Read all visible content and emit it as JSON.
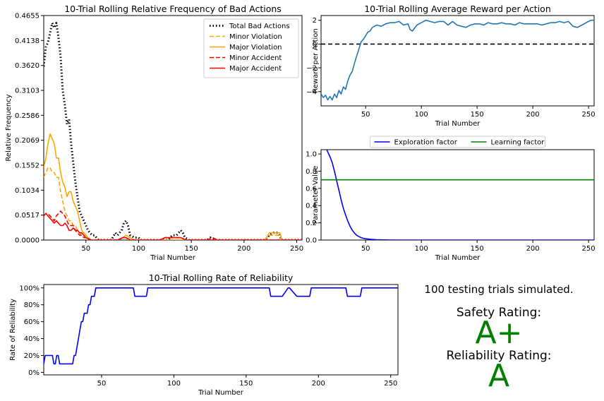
{
  "chart_data": [
    {
      "id": "bad_actions",
      "type": "line",
      "title": "10-Trial Rolling Relative Frequency of Bad Actions",
      "xlabel": "Trial Number",
      "ylabel": "Relative Frequency",
      "xlim": [
        10,
        255
      ],
      "ylim": [
        0,
        0.4655
      ],
      "xticks": [
        50,
        100,
        150,
        200,
        250
      ],
      "yticks": [
        0.0,
        0.0517,
        0.1034,
        0.1552,
        0.2069,
        0.2586,
        0.3103,
        0.362,
        0.4138,
        0.4655
      ],
      "ytick_labels": [
        "0.0000",
        "0.0517",
        "0.1034",
        "0.1552",
        "0.2069",
        "0.2586",
        "0.3103",
        "0.3620",
        "0.4138",
        "0.4655"
      ],
      "legend_loc": "upper right",
      "series": [
        {
          "name": "Total Bad Actions",
          "color": "#000000",
          "dash": "dotted",
          "x": [
            10,
            12,
            14,
            16,
            18,
            20,
            22,
            24,
            26,
            28,
            30,
            32,
            34,
            36,
            38,
            40,
            42,
            44,
            46,
            48,
            50,
            52,
            54,
            56,
            58,
            60,
            62,
            66,
            70,
            74,
            78,
            80,
            84,
            86,
            88,
            90,
            92,
            96,
            100,
            102,
            104,
            108,
            112,
            120,
            124,
            128,
            132,
            136,
            140,
            142,
            144,
            148,
            160,
            165,
            168,
            172,
            180,
            200,
            220,
            224,
            228,
            232,
            236,
            240,
            250,
            255
          ],
          "y": [
            0.36,
            0.4,
            0.41,
            0.43,
            0.45,
            0.44,
            0.45,
            0.42,
            0.38,
            0.31,
            0.28,
            0.24,
            0.25,
            0.2,
            0.16,
            0.12,
            0.09,
            0.06,
            0.05,
            0.04,
            0.03,
            0.02,
            0.015,
            0.01,
            0.01,
            0.005,
            0,
            0,
            0,
            0,
            0.015,
            0.01,
            0.02,
            0.035,
            0.04,
            0.03,
            0.01,
            0.005,
            0.005,
            0,
            0,
            0,
            0,
            0,
            0,
            0,
            0.01,
            0.01,
            0.02,
            0.015,
            0.005,
            0,
            0,
            0,
            0.005,
            0,
            0,
            0,
            0,
            0.01,
            0.015,
            0.015,
            0,
            0,
            0,
            0
          ]
        },
        {
          "name": "Minor Violation",
          "color": "#FFA500",
          "dash": "dashed",
          "x": [
            10,
            12,
            14,
            16,
            18,
            20,
            22,
            24,
            26,
            28,
            30,
            32,
            34,
            36,
            38,
            40,
            42,
            44,
            46,
            48,
            50,
            55,
            60,
            80,
            85,
            88,
            90,
            100,
            120,
            130,
            140,
            145,
            200,
            220,
            224,
            226,
            230,
            234,
            236,
            240,
            255
          ],
          "y": [
            0.13,
            0.14,
            0.15,
            0.15,
            0.14,
            0.14,
            0.13,
            0.13,
            0.1,
            0.08,
            0.06,
            0.05,
            0.04,
            0.04,
            0.03,
            0.03,
            0.02,
            0.015,
            0.01,
            0.01,
            0.005,
            0,
            0,
            0,
            0.005,
            0.005,
            0,
            0,
            0,
            0,
            0,
            0,
            0,
            0,
            0.01,
            0.01,
            0.01,
            0.01,
            0,
            0,
            0
          ]
        },
        {
          "name": "Major Violation",
          "color": "#FFA500",
          "dash": "solid",
          "x": [
            10,
            12,
            14,
            16,
            18,
            20,
            22,
            24,
            26,
            28,
            30,
            32,
            34,
            36,
            38,
            40,
            42,
            44,
            46,
            48,
            50,
            52,
            55,
            60,
            80,
            85,
            88,
            92,
            96,
            100,
            120,
            140,
            200,
            220,
            224,
            226,
            230,
            234,
            236,
            240,
            255
          ],
          "y": [
            0.15,
            0.17,
            0.2,
            0.22,
            0.21,
            0.2,
            0.17,
            0.17,
            0.14,
            0.12,
            0.11,
            0.09,
            0.1,
            0.1,
            0.08,
            0.07,
            0.06,
            0.04,
            0.02,
            0.015,
            0.01,
            0.005,
            0,
            0,
            0,
            0.005,
            0.01,
            0.005,
            0,
            0,
            0,
            0,
            0,
            0,
            0.015,
            0.015,
            0.015,
            0.015,
            0,
            0,
            0
          ]
        },
        {
          "name": "Minor Accident",
          "color": "#FF0000",
          "dash": "dashed",
          "x": [
            10,
            12,
            14,
            16,
            18,
            20,
            22,
            24,
            26,
            28,
            30,
            32,
            34,
            36,
            38,
            40,
            42,
            44,
            46,
            48,
            50,
            55,
            60,
            80,
            85,
            88,
            92,
            100,
            120,
            125,
            130,
            140,
            145,
            150,
            165,
            170,
            175,
            180,
            200,
            255
          ],
          "y": [
            0.05,
            0.055,
            0.055,
            0.05,
            0.045,
            0.04,
            0.05,
            0.055,
            0.06,
            0.055,
            0.05,
            0.04,
            0.03,
            0.03,
            0.03,
            0.02,
            0.015,
            0.01,
            0.01,
            0.005,
            0.005,
            0,
            0,
            0,
            0.005,
            0.005,
            0,
            0,
            0,
            0.005,
            0.005,
            0.005,
            0,
            0,
            0,
            0.005,
            0,
            0,
            0,
            0
          ]
        },
        {
          "name": "Major Accident",
          "color": "#FF0000",
          "dash": "solid",
          "x": [
            10,
            12,
            14,
            16,
            18,
            20,
            22,
            24,
            26,
            28,
            30,
            32,
            34,
            36,
            38,
            40,
            42,
            44,
            46,
            48,
            50,
            55,
            60,
            80,
            85,
            88,
            92,
            100,
            120,
            125,
            130,
            140,
            145,
            150,
            255
          ],
          "y": [
            0.05,
            0.055,
            0.05,
            0.045,
            0.04,
            0.035,
            0.04,
            0.035,
            0.03,
            0.03,
            0.035,
            0.03,
            0.02,
            0.02,
            0.025,
            0.02,
            0.02,
            0.015,
            0.015,
            0.01,
            0.005,
            0,
            0,
            0,
            0.005,
            0.005,
            0,
            0,
            0,
            0.005,
            0.005,
            0.005,
            0,
            0,
            0
          ]
        }
      ]
    },
    {
      "id": "reward",
      "type": "line",
      "title": "10-Trial Rolling Average Reward per Action",
      "xlabel": "Trial Number",
      "ylabel": "Reward per Action",
      "xlim": [
        10,
        255
      ],
      "ylim": [
        -5.2,
        2.4
      ],
      "xticks": [
        50,
        100,
        150,
        200,
        250
      ],
      "yticks": [
        -4,
        -2,
        0,
        2
      ],
      "ytick_labels": [
        "−4",
        "−2",
        "0",
        "2"
      ],
      "hline": {
        "y": 0,
        "color": "#000000",
        "dash": "dashed"
      },
      "series": [
        {
          "name": "",
          "color": "#1f77b4",
          "dash": "solid",
          "x": [
            10,
            12,
            14,
            16,
            18,
            20,
            22,
            24,
            26,
            28,
            30,
            32,
            34,
            36,
            38,
            40,
            42,
            44,
            46,
            48,
            50,
            52,
            54,
            56,
            58,
            60,
            64,
            68,
            72,
            76,
            80,
            84,
            88,
            90,
            92,
            96,
            100,
            104,
            108,
            112,
            116,
            120,
            124,
            128,
            132,
            136,
            140,
            144,
            148,
            152,
            156,
            160,
            164,
            168,
            172,
            176,
            180,
            184,
            188,
            192,
            196,
            200,
            204,
            208,
            212,
            216,
            220,
            224,
            228,
            232,
            236,
            240,
            244,
            248,
            252,
            255
          ],
          "y": [
            -4.2,
            -4.5,
            -4.3,
            -4.7,
            -4.4,
            -4.7,
            -4.2,
            -4.5,
            -3.9,
            -4.2,
            -3.6,
            -3.8,
            -3.1,
            -2.6,
            -2.3,
            -1.6,
            -1.0,
            -0.4,
            0.2,
            0.4,
            0.7,
            1.0,
            1.1,
            1.4,
            1.5,
            1.6,
            1.5,
            1.7,
            1.8,
            1.8,
            1.9,
            1.6,
            1.7,
            1.2,
            1.1,
            1.6,
            1.8,
            2.0,
            1.9,
            1.8,
            1.9,
            1.9,
            1.6,
            1.9,
            1.6,
            1.5,
            1.4,
            1.6,
            1.7,
            1.7,
            1.6,
            1.8,
            1.7,
            1.7,
            1.8,
            1.7,
            1.7,
            1.6,
            1.8,
            1.7,
            1.7,
            1.7,
            1.7,
            1.6,
            1.7,
            1.8,
            1.8,
            1.9,
            1.8,
            1.9,
            1.5,
            1.4,
            1.6,
            1.8,
            2.0,
            2.0
          ]
        }
      ]
    },
    {
      "id": "parameters",
      "type": "line",
      "title": "",
      "xlabel": "Trial Number",
      "ylabel": "Parameter Value",
      "xlim": [
        10,
        255
      ],
      "ylim": [
        0,
        1.05
      ],
      "xticks": [
        50,
        100,
        150,
        200,
        250
      ],
      "yticks": [
        0.0,
        0.2,
        0.4,
        0.6,
        0.8,
        1.0
      ],
      "ytick_labels": [
        "0.0",
        "0.2",
        "0.4",
        "0.6",
        "0.8",
        "1.0"
      ],
      "legend_loc": "upper center, outside",
      "series": [
        {
          "name": "Exploration factor",
          "color": "#0000FF",
          "dash": "solid",
          "x": [
            10,
            14,
            18,
            20,
            22,
            24,
            26,
            28,
            30,
            32,
            34,
            36,
            38,
            40,
            42,
            44,
            46,
            48,
            50,
            55,
            60,
            70,
            80,
            255
          ],
          "y": [
            1.15,
            1.08,
            0.97,
            0.9,
            0.8,
            0.69,
            0.58,
            0.47,
            0.37,
            0.29,
            0.22,
            0.16,
            0.115,
            0.08,
            0.055,
            0.04,
            0.028,
            0.02,
            0.015,
            0.008,
            0.004,
            0.001,
            0.0,
            0.0
          ]
        },
        {
          "name": "Learning factor",
          "color": "#008000",
          "dash": "solid",
          "x": [
            10,
            255
          ],
          "y": [
            0.7,
            0.7
          ]
        }
      ]
    },
    {
      "id": "reliability",
      "type": "line",
      "title": "10-Trial Rolling Rate of Reliability",
      "xlabel": "Trial Number",
      "ylabel": "Rate of Reliability",
      "xlim": [
        10,
        255
      ],
      "ylim": [
        -3,
        104
      ],
      "xticks": [
        50,
        100,
        150,
        200,
        250
      ],
      "yticks": [
        0,
        20,
        40,
        60,
        80,
        100
      ],
      "ytick_labels": [
        "0%",
        "20%",
        "40%",
        "60%",
        "80%",
        "100%"
      ],
      "series": [
        {
          "name": "",
          "color": "#0000FF",
          "dash": "solid",
          "x": [
            10,
            11,
            12,
            16,
            17,
            18,
            19,
            20,
            21,
            22,
            23,
            24,
            30,
            31,
            32,
            33,
            34,
            35,
            36,
            37,
            38,
            39,
            40,
            41,
            42,
            43,
            44,
            45,
            46,
            47,
            48,
            72,
            73,
            81,
            82,
            166,
            167,
            174,
            175,
            179,
            180,
            185,
            186,
            194,
            195,
            219,
            220,
            229,
            230,
            255
          ],
          "y": [
            10,
            20,
            20,
            20,
            10,
            10,
            20,
            20,
            10,
            10,
            10,
            10,
            10,
            20,
            20,
            30,
            40,
            50,
            60,
            60,
            70,
            70,
            70,
            80,
            80,
            90,
            90,
            90,
            100,
            100,
            100,
            100,
            90,
            90,
            100,
            100,
            90,
            90,
            90,
            100,
            100,
            90,
            90,
            90,
            100,
            100,
            90,
            90,
            100,
            100
          ]
        }
      ]
    }
  ],
  "summary": {
    "trials_text": "100 testing trials simulated.",
    "safety_label": "Safety Rating:",
    "safety_grade": "A+",
    "reliability_label": "Reliability Rating:",
    "reliability_grade": "A",
    "grade_color": "#008000"
  }
}
